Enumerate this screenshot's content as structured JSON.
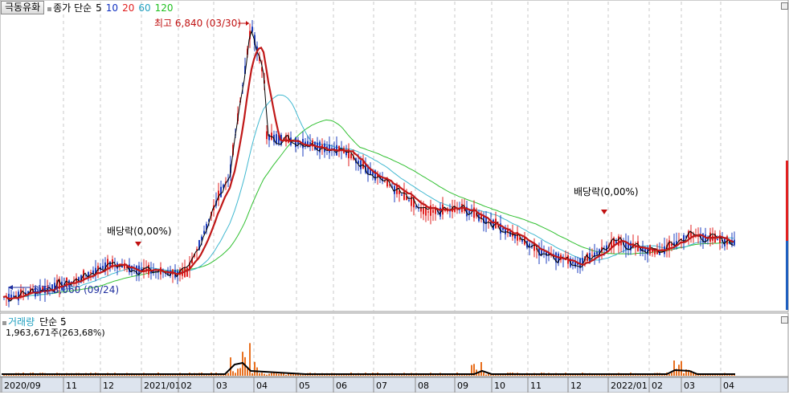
{
  "header": {
    "stock_name": "극동유화",
    "price_series": {
      "label": "종가 단순",
      "ma": [
        "5",
        "10",
        "20",
        "60",
        "120"
      ],
      "ma_colors": [
        "#000000",
        "#1030c0",
        "#e02020",
        "#20a0c0",
        "#20c020"
      ]
    }
  },
  "annotations": {
    "high": "최고 6,840 (03/30)",
    "low": "최저 3,060 (09/24)",
    "dividend1": "배당락(0,00%)",
    "dividend2": "배당락(0,00%)"
  },
  "volume": {
    "title": "거래량",
    "ma_label": "단순 5",
    "value": "1,963,671주(263,68%)"
  },
  "x_axis": [
    "2020/09",
    "11",
    "12",
    "2021/01",
    "02",
    "03",
    "04",
    "05",
    "06",
    "07",
    "08",
    "09",
    "10",
    "11",
    "12",
    "2022/01",
    "02",
    "03",
    "04"
  ],
  "chart_data": {
    "type": "candlestick",
    "title": "극동유화",
    "high": {
      "value": 6840,
      "date": "03/30"
    },
    "low": {
      "value": 3060,
      "date": "09/24"
    },
    "close_monthly_approx": [
      {
        "x": "2020/09",
        "y": 3100
      },
      {
        "x": "11",
        "y": 3300
      },
      {
        "x": "12",
        "y": 3550
      },
      {
        "x": "2021/01",
        "y": 3450
      },
      {
        "x": "02",
        "y": 3420
      },
      {
        "x": "03",
        "y": 4600
      },
      {
        "x": "04",
        "y": 5300
      },
      {
        "x": "05",
        "y": 5200
      },
      {
        "x": "06",
        "y": 5100
      },
      {
        "x": "07",
        "y": 4700
      },
      {
        "x": "08",
        "y": 4250
      },
      {
        "x": "09",
        "y": 4300
      },
      {
        "x": "10",
        "y": 4050
      },
      {
        "x": "11",
        "y": 3750
      },
      {
        "x": "12",
        "y": 3550
      },
      {
        "x": "2022/01",
        "y": 3850
      },
      {
        "x": "02",
        "y": 3700
      },
      {
        "x": "03",
        "y": 3950
      },
      {
        "x": "04",
        "y": 3850
      }
    ],
    "colors": {
      "up": "#e02020",
      "down": "#1f3fbf",
      "volume": "#e87020",
      "volume_ma": "#000000"
    }
  }
}
